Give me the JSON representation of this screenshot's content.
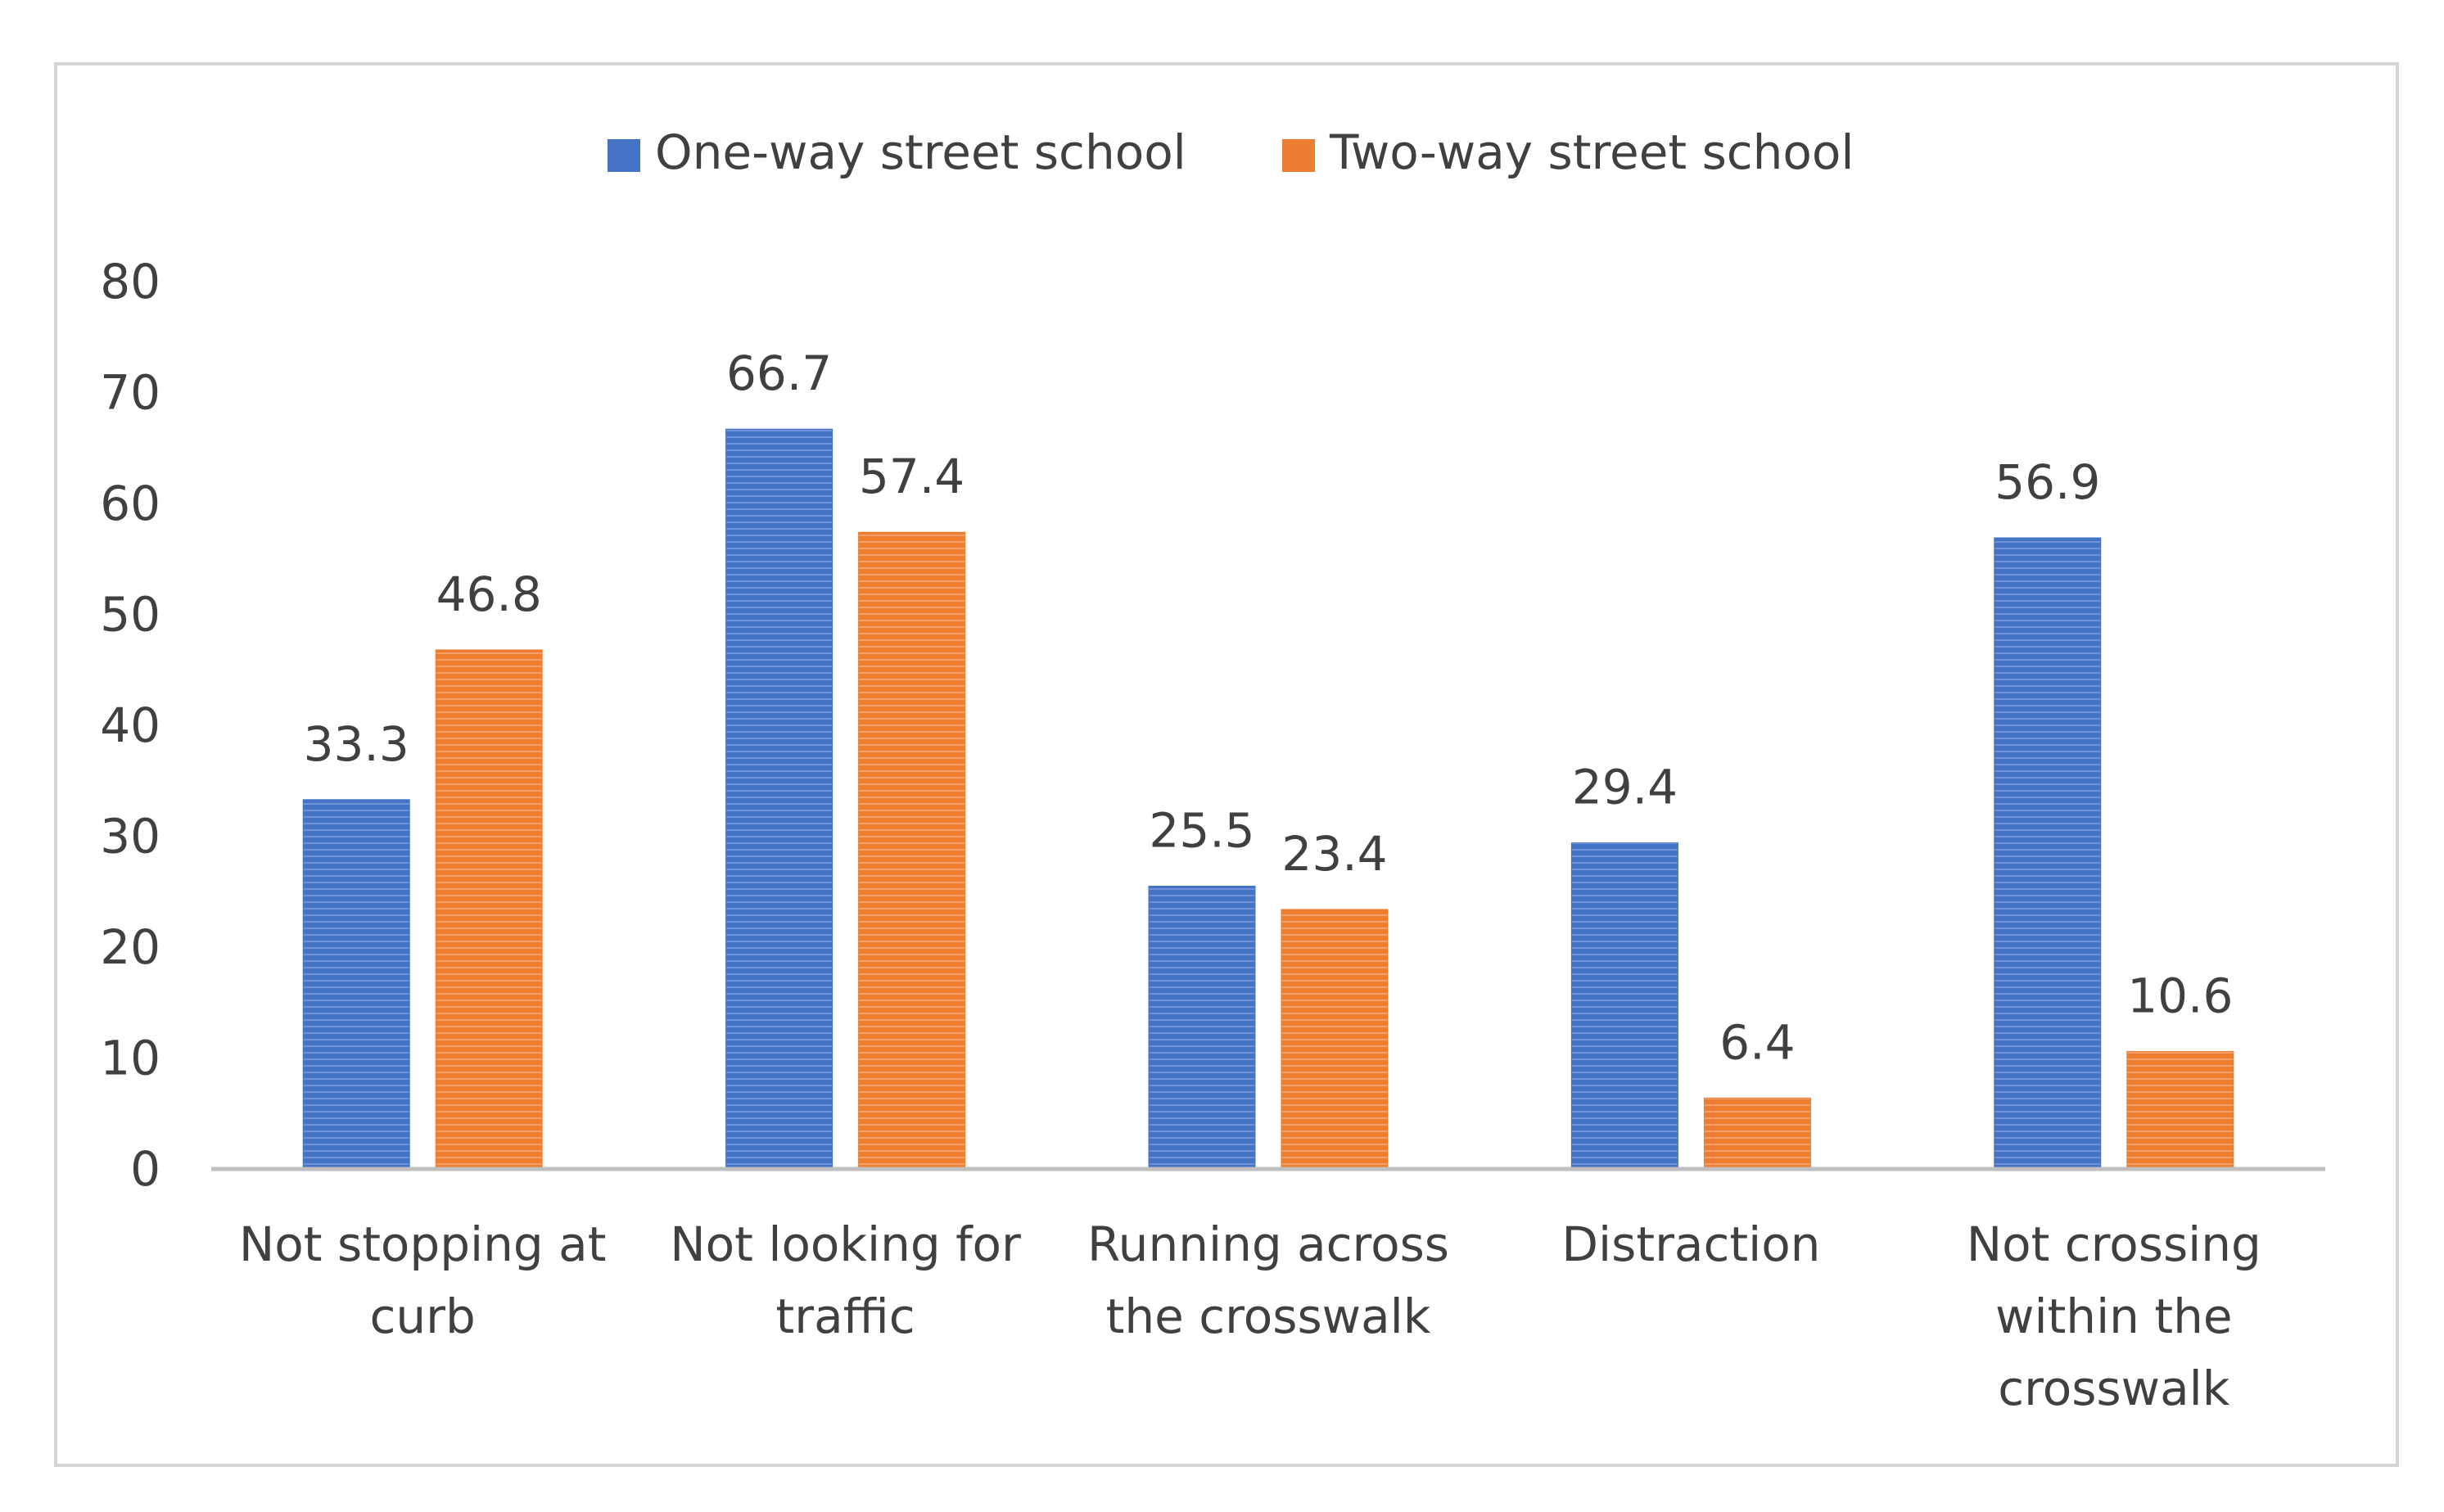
{
  "chart_data": {
    "type": "bar",
    "title": "",
    "xlabel": "",
    "ylabel": "",
    "ylim": [
      0,
      80
    ],
    "yticks": [
      0,
      10,
      20,
      30,
      40,
      50,
      60,
      70,
      80
    ],
    "grid": false,
    "legend_position": "top",
    "categories": [
      [
        "Not stopping at",
        "curb"
      ],
      [
        "Not looking for",
        "traffic"
      ],
      [
        "Running across",
        "the crosswalk"
      ],
      [
        "Distraction"
      ],
      [
        "Not crossing",
        "within the",
        "crosswalk"
      ]
    ],
    "series": [
      {
        "name": "One-way street school",
        "color": "#4472C4",
        "values": [
          33.3,
          66.7,
          25.5,
          29.4,
          56.9
        ],
        "labels": [
          "33.3",
          "66.7",
          "25.5",
          "29.4",
          "56.9"
        ]
      },
      {
        "name": "Two-way street school",
        "color": "#ED7D31",
        "values": [
          46.8,
          57.4,
          23.4,
          6.4,
          10.6
        ],
        "labels": [
          "46.8",
          "57.4",
          "23.4",
          "6.4",
          "10.6"
        ]
      }
    ]
  }
}
